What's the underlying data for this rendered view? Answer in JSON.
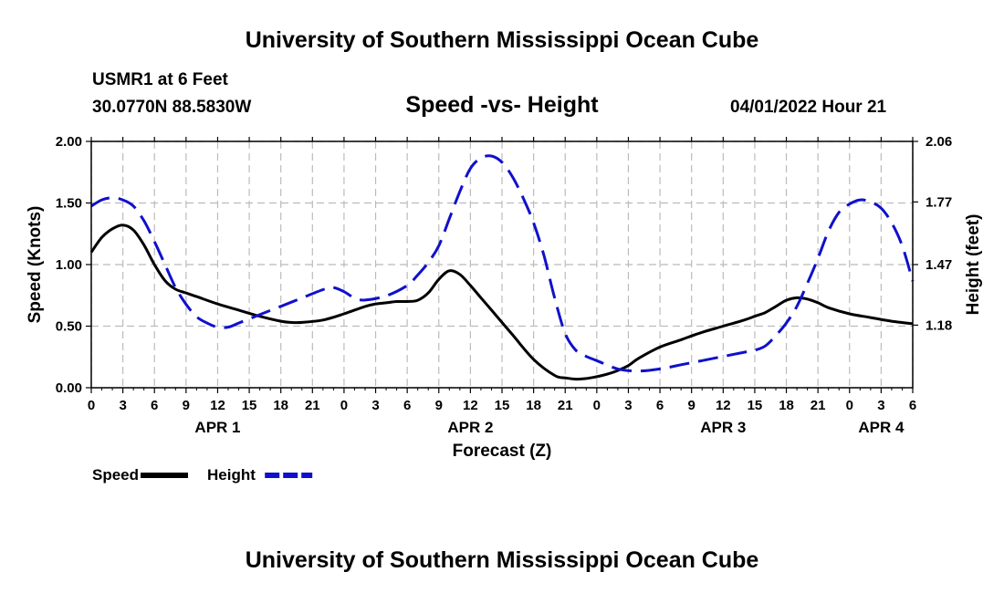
{
  "header": {
    "main_title": "University of Southern Mississippi Ocean Cube",
    "station": "USMR1 at 6 Feet",
    "coordinates": "30.0770N  88.5830W",
    "datetime": "04/01/2022 Hour 21"
  },
  "footer": {
    "title": "University of Southern Mississippi Ocean Cube"
  },
  "colors": {
    "speed": "#000000",
    "height": "#1010cc",
    "grid": "#bbbbbb"
  },
  "chart_data": {
    "type": "line",
    "title": "Speed -vs- Height",
    "xlabel": "Forecast (Z)",
    "ylabel": "Speed (Knots)",
    "y2label": "Height (feet)",
    "xlim": [
      0,
      78
    ],
    "ylim": [
      0,
      2.0
    ],
    "y2lim": [
      0.88,
      2.06
    ],
    "x_ticks": [
      0,
      3,
      6,
      9,
      12,
      15,
      18,
      21,
      24,
      27,
      30,
      33,
      36,
      39,
      42,
      45,
      48,
      51,
      54,
      57,
      60,
      63,
      66,
      69,
      72,
      75,
      78
    ],
    "x_tick_labels": [
      "0",
      "3",
      "6",
      "9",
      "12",
      "15",
      "18",
      "21",
      "0",
      "3",
      "6",
      "9",
      "12",
      "15",
      "18",
      "21",
      "0",
      "3",
      "6",
      "9",
      "12",
      "15",
      "18",
      "21",
      "0",
      "3",
      "6"
    ],
    "y_ticks": [
      0,
      0.5,
      1.0,
      1.5,
      2.0
    ],
    "y_tick_labels": [
      "0.00",
      "0.50",
      "1.00",
      "1.50",
      "2.00"
    ],
    "y2_ticks": [
      1.18,
      1.47,
      1.77,
      2.06
    ],
    "y2_tick_labels": [
      "1.18",
      "1.47",
      "1.77",
      "2.06"
    ],
    "date_labels": [
      {
        "x": 12,
        "label": "APR 1"
      },
      {
        "x": 36,
        "label": "APR 2"
      },
      {
        "x": 60,
        "label": "APR 3"
      },
      {
        "x": 75,
        "label": "APR 4"
      }
    ],
    "series": [
      {
        "name": "Speed",
        "axis": "left",
        "style": "solid",
        "x": [
          0,
          1,
          2,
          3,
          4,
          5,
          6,
          7,
          8,
          9,
          10,
          12,
          14,
          16,
          18,
          19,
          20,
          22,
          24,
          26,
          27,
          28,
          29,
          30,
          31,
          32,
          33,
          34,
          35,
          36,
          37,
          38,
          40,
          42,
          44,
          45,
          46,
          47,
          48,
          49,
          50,
          51,
          52,
          54,
          56,
          58,
          60,
          62,
          63,
          64,
          65,
          66,
          67,
          68,
          69,
          70,
          72,
          74,
          76,
          78
        ],
        "y": [
          1.1,
          1.22,
          1.29,
          1.32,
          1.28,
          1.16,
          1.0,
          0.87,
          0.8,
          0.77,
          0.74,
          0.68,
          0.63,
          0.58,
          0.54,
          0.53,
          0.53,
          0.55,
          0.6,
          0.66,
          0.68,
          0.69,
          0.7,
          0.7,
          0.71,
          0.77,
          0.88,
          0.95,
          0.92,
          0.83,
          0.73,
          0.63,
          0.43,
          0.23,
          0.1,
          0.08,
          0.07,
          0.075,
          0.09,
          0.11,
          0.14,
          0.18,
          0.24,
          0.33,
          0.39,
          0.45,
          0.5,
          0.55,
          0.58,
          0.61,
          0.66,
          0.71,
          0.73,
          0.72,
          0.69,
          0.65,
          0.6,
          0.57,
          0.54,
          0.52
        ]
      },
      {
        "name": "Height",
        "axis": "right",
        "style": "dashed",
        "x": [
          0,
          1,
          2,
          3,
          4,
          5,
          6,
          7,
          8,
          9,
          10,
          11,
          12,
          13,
          14,
          15,
          16,
          18,
          20,
          22,
          23,
          24,
          25,
          26,
          28,
          30,
          31,
          32,
          33,
          34,
          35,
          36,
          37,
          38,
          39,
          40,
          41,
          42,
          43,
          44,
          45,
          46,
          47,
          48,
          50,
          52,
          54,
          56,
          58,
          60,
          62,
          63,
          64,
          65,
          66,
          67,
          68,
          69,
          70,
          71,
          72,
          73,
          74,
          75,
          76,
          77,
          78
        ],
        "y": [
          1.75,
          1.78,
          1.79,
          1.78,
          1.75,
          1.68,
          1.58,
          1.47,
          1.36,
          1.28,
          1.22,
          1.19,
          1.17,
          1.17,
          1.19,
          1.21,
          1.23,
          1.27,
          1.31,
          1.35,
          1.36,
          1.34,
          1.31,
          1.3,
          1.32,
          1.37,
          1.42,
          1.48,
          1.56,
          1.69,
          1.82,
          1.93,
          1.98,
          1.99,
          1.96,
          1.89,
          1.79,
          1.67,
          1.51,
          1.31,
          1.14,
          1.06,
          1.03,
          1.01,
          0.97,
          0.96,
          0.97,
          0.99,
          1.01,
          1.03,
          1.05,
          1.06,
          1.08,
          1.13,
          1.19,
          1.27,
          1.38,
          1.5,
          1.63,
          1.72,
          1.76,
          1.78,
          1.77,
          1.74,
          1.67,
          1.56,
          1.39
        ]
      }
    ],
    "legend": [
      {
        "label": "Speed",
        "series": 0
      },
      {
        "label": "Height",
        "series": 1
      }
    ],
    "legend_position": "bottom-left",
    "grid": true
  }
}
